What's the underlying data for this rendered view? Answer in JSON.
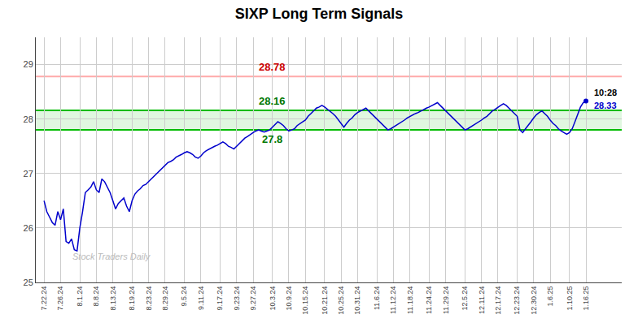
{
  "chart_data": {
    "type": "line",
    "title": "SIXP Long Term Signals",
    "color": "#0000cc",
    "categories": [
      "7.22.24",
      null,
      null,
      null,
      null,
      null,
      "7.26.24",
      null,
      null,
      null,
      null,
      null,
      null,
      "8.1.24",
      null,
      null,
      null,
      null,
      null,
      "8.8.24",
      null,
      null,
      null,
      null,
      null,
      "8.13.24",
      null,
      null,
      null,
      null,
      null,
      null,
      "8.19.24",
      null,
      null,
      null,
      null,
      null,
      "8.23.24",
      null,
      null,
      null,
      null,
      null,
      "8.29.24",
      null,
      null,
      null,
      null,
      null,
      null,
      "9.5.24",
      null,
      null,
      null,
      null,
      null,
      "9.11.24",
      null,
      null,
      null,
      null,
      null,
      null,
      "9.17.24",
      null,
      null,
      null,
      null,
      null,
      "9.23.24",
      null,
      null,
      null,
      null,
      null,
      "9.27.24",
      null,
      null,
      null,
      null,
      null,
      null,
      "10.3.24",
      null,
      null,
      null,
      null,
      null,
      "10.9.24",
      null,
      null,
      null,
      null,
      null,
      "10.15.24",
      null,
      null,
      null,
      null,
      null,
      null,
      "10.21.24",
      null,
      null,
      null,
      null,
      null,
      "10.25.24",
      null,
      null,
      null,
      null,
      null,
      "10.31.24",
      null,
      null,
      null,
      null,
      null,
      null,
      "11.6.24",
      null,
      null,
      null,
      null,
      null,
      "11.12.24",
      null,
      null,
      null,
      null,
      null,
      "11.18.24",
      null,
      null,
      null,
      null,
      null,
      null,
      "11.24.24",
      null,
      null,
      null,
      null,
      null,
      "11.29.24",
      null,
      null,
      null,
      null,
      null,
      null,
      "12.5.24",
      null,
      null,
      null,
      null,
      null,
      "12.11.24",
      null,
      null,
      null,
      null,
      null,
      "12.17.24",
      null,
      null,
      null,
      null,
      null,
      null,
      "12.23.24",
      null,
      null,
      null,
      null,
      null,
      "12.30.24",
      null,
      null,
      null,
      null,
      null,
      "1.6.25",
      null,
      null,
      null,
      null,
      null,
      null,
      "1.10.25",
      null,
      null,
      null,
      null,
      null,
      "1.16.25"
    ],
    "values": [
      26.5,
      26.3,
      26.2,
      26.1,
      26.05,
      26.3,
      26.15,
      26.35,
      25.75,
      25.72,
      25.8,
      25.6,
      25.58,
      26.0,
      26.3,
      26.65,
      26.7,
      26.75,
      26.85,
      26.7,
      26.65,
      26.9,
      26.85,
      26.75,
      26.65,
      26.5,
      26.35,
      26.45,
      26.5,
      26.55,
      26.4,
      26.3,
      26.5,
      26.62,
      26.68,
      26.72,
      26.78,
      26.8,
      26.85,
      26.9,
      26.95,
      27.0,
      27.05,
      27.1,
      27.15,
      27.2,
      27.22,
      27.25,
      27.3,
      27.32,
      27.35,
      27.38,
      27.4,
      27.38,
      27.35,
      27.3,
      27.28,
      27.32,
      27.38,
      27.42,
      27.45,
      27.48,
      27.5,
      27.52,
      27.55,
      27.58,
      27.55,
      27.5,
      27.48,
      27.45,
      27.5,
      27.55,
      27.6,
      27.65,
      27.68,
      27.72,
      27.75,
      27.78,
      27.8,
      27.78,
      27.76,
      27.78,
      27.8,
      27.85,
      27.9,
      27.95,
      27.92,
      27.88,
      27.82,
      27.78,
      27.8,
      27.82,
      27.88,
      27.92,
      27.95,
      27.98,
      28.05,
      28.1,
      28.15,
      28.2,
      28.22,
      28.25,
      28.22,
      28.18,
      28.15,
      28.1,
      28.05,
      27.98,
      27.92,
      27.85,
      27.92,
      27.98,
      28.02,
      28.08,
      28.12,
      28.15,
      28.18,
      28.2,
      28.15,
      28.1,
      28.05,
      28.0,
      27.95,
      27.9,
      27.85,
      27.8,
      27.82,
      27.85,
      27.88,
      27.92,
      27.95,
      27.98,
      28.02,
      28.05,
      28.08,
      28.1,
      28.12,
      28.15,
      28.18,
      28.2,
      28.22,
      28.25,
      28.28,
      28.3,
      28.25,
      28.2,
      28.15,
      28.1,
      28.05,
      28.0,
      27.95,
      27.9,
      27.85,
      27.8,
      27.82,
      27.85,
      27.88,
      27.92,
      27.95,
      27.98,
      28.02,
      28.05,
      28.1,
      28.15,
      28.18,
      28.22,
      28.25,
      28.28,
      28.25,
      28.2,
      28.15,
      28.1,
      28.05,
      27.8,
      27.75,
      27.82,
      27.88,
      27.95,
      28.02,
      28.08,
      28.12,
      28.15,
      28.1,
      28.05,
      27.98,
      27.92,
      27.88,
      27.82,
      27.78,
      27.75,
      27.72,
      27.75,
      27.82,
      27.95,
      28.1,
      28.22,
      28.3,
      28.33
    ],
    "hlines": [
      {
        "value": 28.78,
        "color": "#ffaaaa",
        "label": "28.78",
        "label_color": "#cc0000"
      },
      {
        "value": 28.16,
        "color": "#00bb00",
        "label": "28.16",
        "label_color": "#007700"
      },
      {
        "value": 27.8,
        "color": "#00bb00",
        "label": "27.8",
        "label_color": "#007700"
      }
    ],
    "band": {
      "from": 27.8,
      "to": 28.16,
      "color": "#00bb00"
    },
    "last_time": {
      "text": "10:28",
      "color": "#000000"
    },
    "last_price": {
      "text": "28.33",
      "color": "#0000cc"
    },
    "watermark": {
      "text": "Stock Traders Daily",
      "color": "#bbbbbb"
    },
    "ylim": [
      25.0,
      29.5
    ],
    "yticks": [
      25,
      26,
      27,
      28,
      29
    ],
    "grid": true
  }
}
